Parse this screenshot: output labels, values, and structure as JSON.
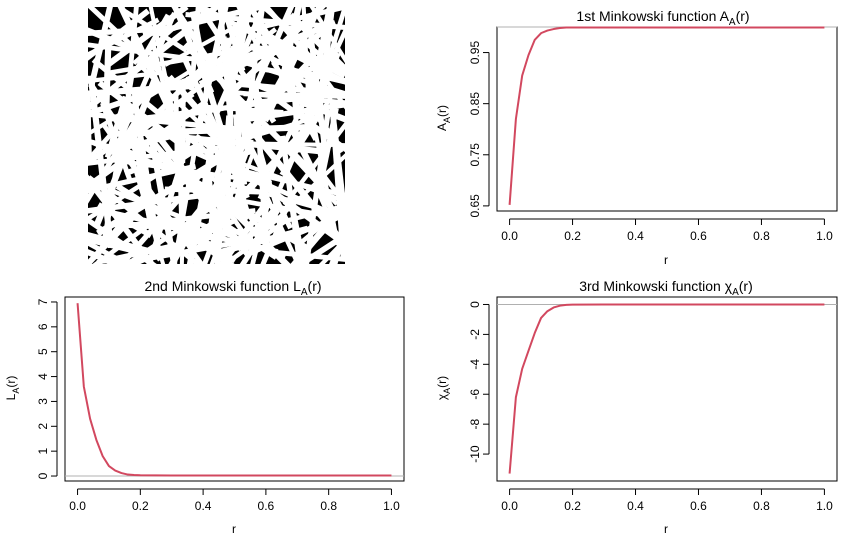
{
  "image_panel": {
    "description_icon": "random-fibre-network-image",
    "colors": {
      "background": "#000000",
      "fibres": "#ffffff"
    }
  },
  "colors": {
    "curve": "#d2485f",
    "reference_line": "#b0b0b0",
    "frame": "#000000"
  },
  "chart_data": [
    {
      "type": "line",
      "title": "1st Minkowski function A_A(r)",
      "title_parts": {
        "main": "1st Minkowski function A",
        "sub": "A",
        "tail": "(r)"
      },
      "xlabel": "r",
      "ylabel_parts": {
        "main": "A",
        "sub": "A",
        "tail": "(r)"
      },
      "xlim": [
        0,
        1
      ],
      "ylim": [
        0.64,
        1.0
      ],
      "xticks": [
        0.0,
        0.2,
        0.4,
        0.6,
        0.8,
        1.0
      ],
      "xtick_labels": [
        "0.0",
        "0.2",
        "0.4",
        "0.6",
        "0.8",
        "1.0"
      ],
      "yticks": [
        0.65,
        0.75,
        0.85,
        0.95
      ],
      "ytick_labels": [
        "0.65",
        "0.75",
        "0.85",
        "0.95"
      ],
      "reference_y": 1.0,
      "x": [
        0.0,
        0.02,
        0.04,
        0.06,
        0.08,
        0.1,
        0.12,
        0.14,
        0.16,
        0.18,
        0.2,
        0.3,
        0.4,
        0.5,
        0.6,
        0.7,
        0.8,
        0.9,
        1.0
      ],
      "y": [
        0.652,
        0.82,
        0.905,
        0.945,
        0.975,
        0.988,
        0.993,
        0.996,
        0.998,
        0.999,
        0.999,
        0.999,
        0.999,
        0.999,
        0.999,
        0.999,
        0.999,
        0.999,
        0.999
      ]
    },
    {
      "type": "line",
      "title": "2nd Minkowski function L_A(r)",
      "title_parts": {
        "main": "2nd Minkowski function L",
        "sub": "A",
        "tail": "(r)"
      },
      "xlabel": "r",
      "ylabel_parts": {
        "main": "L",
        "sub": "A",
        "tail": "(r)"
      },
      "xlim": [
        0,
        1
      ],
      "ylim": [
        -0.2,
        7.2
      ],
      "xticks": [
        0.0,
        0.2,
        0.4,
        0.6,
        0.8,
        1.0
      ],
      "xtick_labels": [
        "0.0",
        "0.2",
        "0.4",
        "0.6",
        "0.8",
        "1.0"
      ],
      "yticks": [
        0,
        1,
        2,
        3,
        4,
        5,
        6,
        7
      ],
      "ytick_labels": [
        "0",
        "1",
        "2",
        "3",
        "4",
        "5",
        "6",
        "7"
      ],
      "reference_y": 0.0,
      "x": [
        0.0,
        0.02,
        0.04,
        0.06,
        0.08,
        0.1,
        0.12,
        0.14,
        0.16,
        0.18,
        0.2,
        0.3,
        0.4,
        0.5,
        0.6,
        0.7,
        0.8,
        0.9,
        1.0
      ],
      "y": [
        6.95,
        3.6,
        2.3,
        1.45,
        0.8,
        0.4,
        0.22,
        0.12,
        0.06,
        0.04,
        0.03,
        0.02,
        0.02,
        0.02,
        0.02,
        0.02,
        0.02,
        0.02,
        0.02
      ]
    },
    {
      "type": "line",
      "title": "3rd Minkowski function χ_A(r)",
      "title_parts": {
        "main": "3rd Minkowski function χ",
        "sub": "A",
        "tail": "(r)"
      },
      "xlabel": "r",
      "ylabel_parts": {
        "main": "χ",
        "sub": "A",
        "tail": "(r)"
      },
      "xlim": [
        0,
        1
      ],
      "ylim": [
        -11.8,
        0.5
      ],
      "xticks": [
        0.0,
        0.2,
        0.4,
        0.6,
        0.8,
        1.0
      ],
      "xtick_labels": [
        "0.0",
        "0.2",
        "0.4",
        "0.6",
        "0.8",
        "1.0"
      ],
      "yticks": [
        0,
        -2,
        -4,
        -6,
        -8,
        -10
      ],
      "ytick_labels": [
        "0",
        "-2",
        "-4",
        "-6",
        "-8",
        "-10"
      ],
      "reference_y": 0.0,
      "x": [
        0.0,
        0.02,
        0.04,
        0.06,
        0.08,
        0.1,
        0.12,
        0.14,
        0.16,
        0.18,
        0.2,
        0.3,
        0.4,
        0.5,
        0.6,
        0.7,
        0.8,
        0.9,
        1.0
      ],
      "y": [
        -11.3,
        -6.2,
        -4.3,
        -3.1,
        -1.9,
        -0.9,
        -0.45,
        -0.2,
        -0.08,
        -0.03,
        -0.01,
        0.0,
        0.0,
        0.0,
        0.0,
        0.0,
        0.0,
        0.0,
        0.0
      ]
    }
  ]
}
